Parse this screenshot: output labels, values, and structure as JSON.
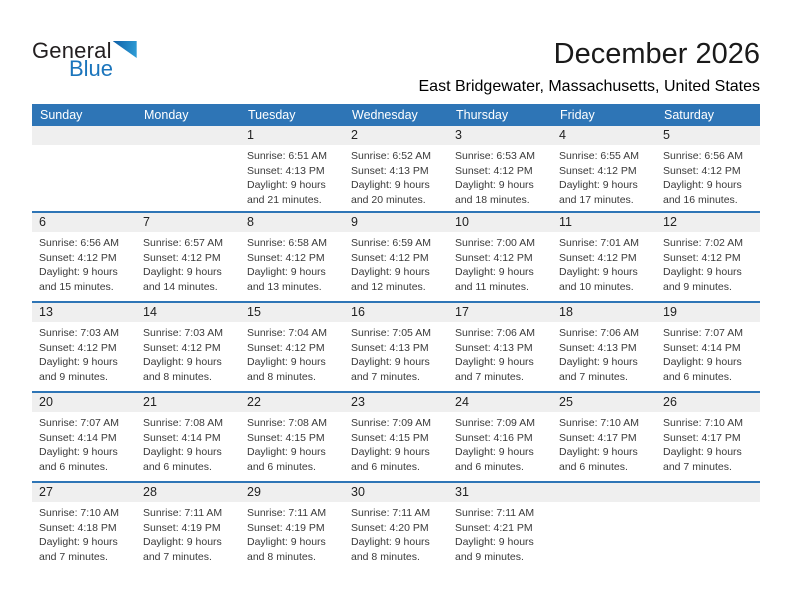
{
  "logo": {
    "general": "General",
    "blue": "Blue"
  },
  "header": {
    "title": "December 2026",
    "subtitle": "East Bridgewater, Massachusetts, United States"
  },
  "colors": {
    "header_bg": "#2E75B6",
    "row_divider": "#2E75B6",
    "day_strip_bg": "#EFEFEF",
    "logo_blue": "#1B75BC",
    "logo_black": "#231F20"
  },
  "calendar": {
    "day_headers": [
      "Sunday",
      "Monday",
      "Tuesday",
      "Wednesday",
      "Thursday",
      "Friday",
      "Saturday"
    ],
    "weeks": [
      [
        null,
        null,
        {
          "day": "1",
          "sunrise": "Sunrise: 6:51 AM",
          "sunset": "Sunset: 4:13 PM",
          "daylight_line1": "Daylight: 9 hours",
          "daylight_line2": "and 21 minutes."
        },
        {
          "day": "2",
          "sunrise": "Sunrise: 6:52 AM",
          "sunset": "Sunset: 4:13 PM",
          "daylight_line1": "Daylight: 9 hours",
          "daylight_line2": "and 20 minutes."
        },
        {
          "day": "3",
          "sunrise": "Sunrise: 6:53 AM",
          "sunset": "Sunset: 4:12 PM",
          "daylight_line1": "Daylight: 9 hours",
          "daylight_line2": "and 18 minutes."
        },
        {
          "day": "4",
          "sunrise": "Sunrise: 6:55 AM",
          "sunset": "Sunset: 4:12 PM",
          "daylight_line1": "Daylight: 9 hours",
          "daylight_line2": "and 17 minutes."
        },
        {
          "day": "5",
          "sunrise": "Sunrise: 6:56 AM",
          "sunset": "Sunset: 4:12 PM",
          "daylight_line1": "Daylight: 9 hours",
          "daylight_line2": "and 16 minutes."
        }
      ],
      [
        {
          "day": "6",
          "sunrise": "Sunrise: 6:56 AM",
          "sunset": "Sunset: 4:12 PM",
          "daylight_line1": "Daylight: 9 hours",
          "daylight_line2": "and 15 minutes."
        },
        {
          "day": "7",
          "sunrise": "Sunrise: 6:57 AM",
          "sunset": "Sunset: 4:12 PM",
          "daylight_line1": "Daylight: 9 hours",
          "daylight_line2": "and 14 minutes."
        },
        {
          "day": "8",
          "sunrise": "Sunrise: 6:58 AM",
          "sunset": "Sunset: 4:12 PM",
          "daylight_line1": "Daylight: 9 hours",
          "daylight_line2": "and 13 minutes."
        },
        {
          "day": "9",
          "sunrise": "Sunrise: 6:59 AM",
          "sunset": "Sunset: 4:12 PM",
          "daylight_line1": "Daylight: 9 hours",
          "daylight_line2": "and 12 minutes."
        },
        {
          "day": "10",
          "sunrise": "Sunrise: 7:00 AM",
          "sunset": "Sunset: 4:12 PM",
          "daylight_line1": "Daylight: 9 hours",
          "daylight_line2": "and 11 minutes."
        },
        {
          "day": "11",
          "sunrise": "Sunrise: 7:01 AM",
          "sunset": "Sunset: 4:12 PM",
          "daylight_line1": "Daylight: 9 hours",
          "daylight_line2": "and 10 minutes."
        },
        {
          "day": "12",
          "sunrise": "Sunrise: 7:02 AM",
          "sunset": "Sunset: 4:12 PM",
          "daylight_line1": "Daylight: 9 hours",
          "daylight_line2": "and 9 minutes."
        }
      ],
      [
        {
          "day": "13",
          "sunrise": "Sunrise: 7:03 AM",
          "sunset": "Sunset: 4:12 PM",
          "daylight_line1": "Daylight: 9 hours",
          "daylight_line2": "and 9 minutes."
        },
        {
          "day": "14",
          "sunrise": "Sunrise: 7:03 AM",
          "sunset": "Sunset: 4:12 PM",
          "daylight_line1": "Daylight: 9 hours",
          "daylight_line2": "and 8 minutes."
        },
        {
          "day": "15",
          "sunrise": "Sunrise: 7:04 AM",
          "sunset": "Sunset: 4:12 PM",
          "daylight_line1": "Daylight: 9 hours",
          "daylight_line2": "and 8 minutes."
        },
        {
          "day": "16",
          "sunrise": "Sunrise: 7:05 AM",
          "sunset": "Sunset: 4:13 PM",
          "daylight_line1": "Daylight: 9 hours",
          "daylight_line2": "and 7 minutes."
        },
        {
          "day": "17",
          "sunrise": "Sunrise: 7:06 AM",
          "sunset": "Sunset: 4:13 PM",
          "daylight_line1": "Daylight: 9 hours",
          "daylight_line2": "and 7 minutes."
        },
        {
          "day": "18",
          "sunrise": "Sunrise: 7:06 AM",
          "sunset": "Sunset: 4:13 PM",
          "daylight_line1": "Daylight: 9 hours",
          "daylight_line2": "and 7 minutes."
        },
        {
          "day": "19",
          "sunrise": "Sunrise: 7:07 AM",
          "sunset": "Sunset: 4:14 PM",
          "daylight_line1": "Daylight: 9 hours",
          "daylight_line2": "and 6 minutes."
        }
      ],
      [
        {
          "day": "20",
          "sunrise": "Sunrise: 7:07 AM",
          "sunset": "Sunset: 4:14 PM",
          "daylight_line1": "Daylight: 9 hours",
          "daylight_line2": "and 6 minutes."
        },
        {
          "day": "21",
          "sunrise": "Sunrise: 7:08 AM",
          "sunset": "Sunset: 4:14 PM",
          "daylight_line1": "Daylight: 9 hours",
          "daylight_line2": "and 6 minutes."
        },
        {
          "day": "22",
          "sunrise": "Sunrise: 7:08 AM",
          "sunset": "Sunset: 4:15 PM",
          "daylight_line1": "Daylight: 9 hours",
          "daylight_line2": "and 6 minutes."
        },
        {
          "day": "23",
          "sunrise": "Sunrise: 7:09 AM",
          "sunset": "Sunset: 4:15 PM",
          "daylight_line1": "Daylight: 9 hours",
          "daylight_line2": "and 6 minutes."
        },
        {
          "day": "24",
          "sunrise": "Sunrise: 7:09 AM",
          "sunset": "Sunset: 4:16 PM",
          "daylight_line1": "Daylight: 9 hours",
          "daylight_line2": "and 6 minutes."
        },
        {
          "day": "25",
          "sunrise": "Sunrise: 7:10 AM",
          "sunset": "Sunset: 4:17 PM",
          "daylight_line1": "Daylight: 9 hours",
          "daylight_line2": "and 6 minutes."
        },
        {
          "day": "26",
          "sunrise": "Sunrise: 7:10 AM",
          "sunset": "Sunset: 4:17 PM",
          "daylight_line1": "Daylight: 9 hours",
          "daylight_line2": "and 7 minutes."
        }
      ],
      [
        {
          "day": "27",
          "sunrise": "Sunrise: 7:10 AM",
          "sunset": "Sunset: 4:18 PM",
          "daylight_line1": "Daylight: 9 hours",
          "daylight_line2": "and 7 minutes."
        },
        {
          "day": "28",
          "sunrise": "Sunrise: 7:11 AM",
          "sunset": "Sunset: 4:19 PM",
          "daylight_line1": "Daylight: 9 hours",
          "daylight_line2": "and 7 minutes."
        },
        {
          "day": "29",
          "sunrise": "Sunrise: 7:11 AM",
          "sunset": "Sunset: 4:19 PM",
          "daylight_line1": "Daylight: 9 hours",
          "daylight_line2": "and 8 minutes."
        },
        {
          "day": "30",
          "sunrise": "Sunrise: 7:11 AM",
          "sunset": "Sunset: 4:20 PM",
          "daylight_line1": "Daylight: 9 hours",
          "daylight_line2": "and 8 minutes."
        },
        {
          "day": "31",
          "sunrise": "Sunrise: 7:11 AM",
          "sunset": "Sunset: 4:21 PM",
          "daylight_line1": "Daylight: 9 hours",
          "daylight_line2": "and 9 minutes."
        },
        null,
        null
      ]
    ]
  }
}
